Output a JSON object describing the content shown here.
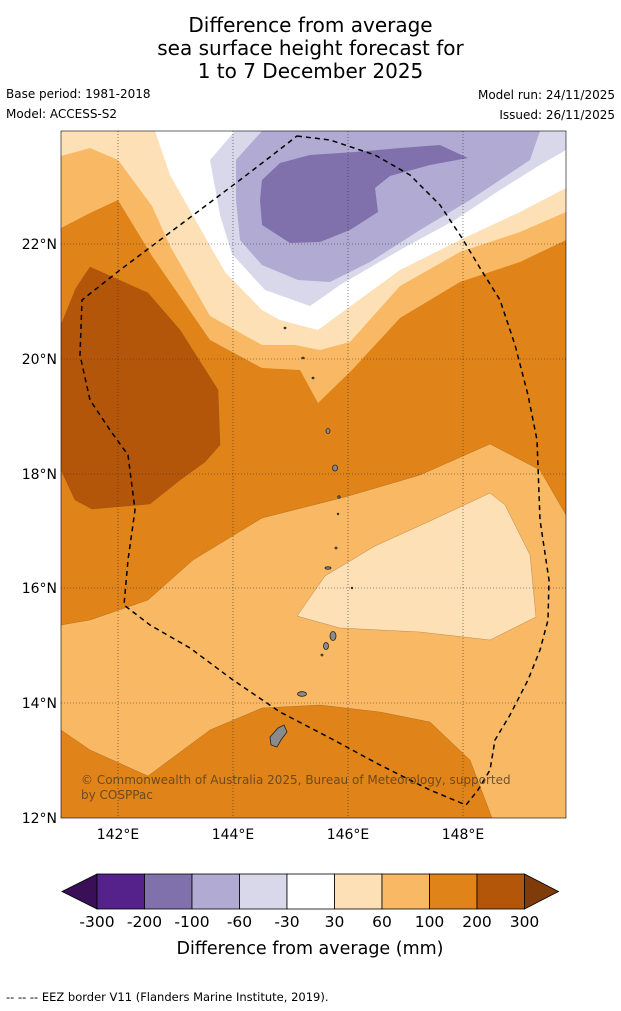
{
  "title": {
    "line1": "Difference from average",
    "line2": "sea surface height forecast for",
    "line3": "1 to 7 December 2025"
  },
  "meta": {
    "base_period": "Base period: 1981-2018",
    "model": "Model: ACCESS-S2",
    "model_run": "Model run: 24/11/2025",
    "issued": "Issued: 26/11/2025"
  },
  "map": {
    "lon_range": [
      141,
      149.8
    ],
    "lat_range": [
      12,
      24
    ],
    "x_ticks": [
      "142°E",
      "144°E",
      "146°E",
      "148°E"
    ],
    "y_ticks": [
      "12°N",
      "14°N",
      "16°N",
      "18°N",
      "20°N",
      "22°N"
    ],
    "copyright_line1": "© Commonwealth of Australia 2025, Bureau of Meteorology, supported",
    "copyright_line2": "by COSPPac"
  },
  "colorbar": {
    "ticks": [
      "-300",
      "-200",
      "-100",
      "-60",
      "-30",
      "30",
      "60",
      "100",
      "200",
      "300"
    ],
    "label": "Difference from average (mm)",
    "colors": {
      "below_-300": "#3b0f57",
      "-300_-200": "#55218a",
      "-200_-100": "#8071ad",
      "-100_-60": "#b1aad2",
      "-60_-30": "#d9d8ea",
      "-30_30": "#ffffff",
      "30_60": "#fde0b6",
      "60_100": "#f9b964",
      "100_200": "#e08318",
      "200_300": "#b45609",
      "above_300": "#7f3b09"
    }
  },
  "footer": "--  --  -- EEZ border V11 (Flanders Marine Institute, 2019)."
}
